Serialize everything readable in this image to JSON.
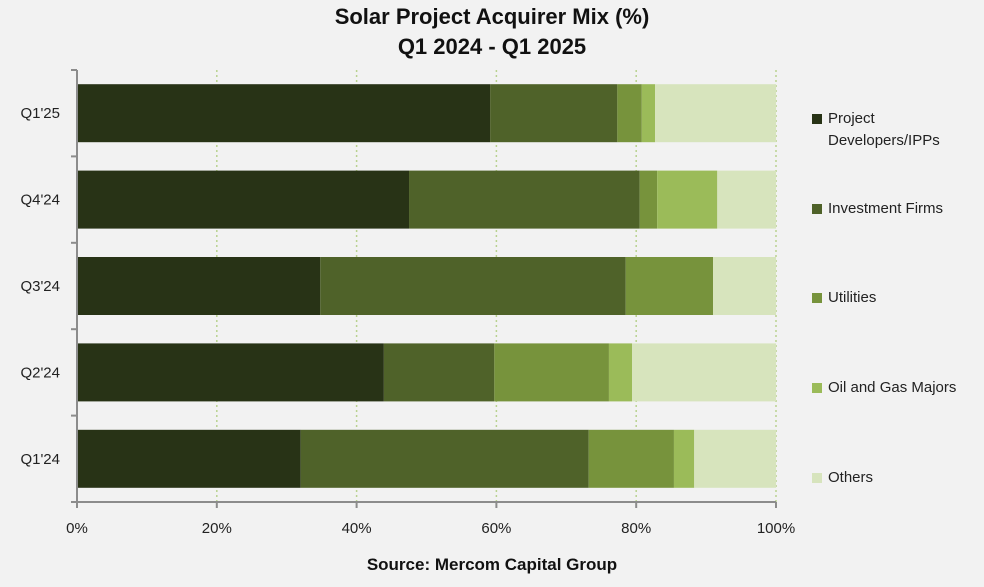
{
  "chart_data": {
    "type": "bar",
    "orientation": "horizontal",
    "stacked": "percent",
    "title": "Solar Project Acquirer Mix (%)",
    "subtitle": "Q1 2024 - Q1 2025",
    "source": "Source: Mercom Capital Group",
    "xlabel": "",
    "ylabel": "",
    "xlim": [
      0,
      100
    ],
    "x_ticks": [
      "0%",
      "20%",
      "40%",
      "60%",
      "80%",
      "100%"
    ],
    "x_tick_values": [
      0,
      20,
      40,
      60,
      80,
      100
    ],
    "grid": "vertical dotted",
    "legend_position": "right",
    "categories": [
      "Q1'25",
      "Q4'24",
      "Q3'24",
      "Q2'24",
      "Q1'24"
    ],
    "series": [
      {
        "name": "Project Developers/IPPs",
        "color": "#283316",
        "values": [
          59.1,
          47.5,
          34.8,
          43.9,
          32.0
        ]
      },
      {
        "name": "Investment Firms",
        "color": "#4f6229",
        "values": [
          18.2,
          33.0,
          43.7,
          15.8,
          41.2
        ]
      },
      {
        "name": "Utilities",
        "color": "#77933c",
        "values": [
          3.5,
          2.5,
          12.5,
          16.4,
          12.2
        ]
      },
      {
        "name": "Oil and Gas Majors",
        "color": "#9bbb59",
        "values": [
          1.9,
          8.6,
          0.0,
          3.3,
          2.9
        ]
      },
      {
        "name": "Others",
        "color": "#d7e4bd",
        "values": [
          17.3,
          8.4,
          9.0,
          20.6,
          11.7
        ]
      }
    ]
  }
}
